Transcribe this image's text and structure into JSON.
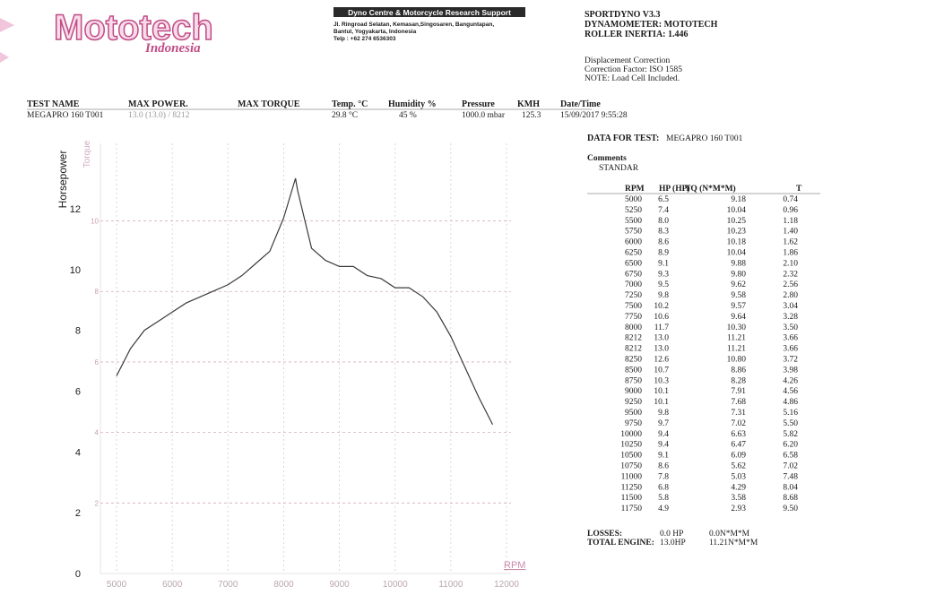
{
  "header": {
    "logo": "Mototech",
    "logo_sub": "Indonesia",
    "company": "Dyno Centre & Motorcycle Research Support",
    "address": [
      "Jl. Ringroad Selatan, Kemasan,Singosaren, Banguntapan,",
      "Bantul, Yogyakarta, Indonesia",
      "Telp : +62 274 6536303"
    ]
  },
  "software": {
    "lines": [
      "SPORTDYNO V3.3",
      "DYNAMOMETER: MOTOTECH",
      "ROLLER INERTIA: 1.446"
    ],
    "notes": [
      "Displacement Correction",
      "Correction Factor: ISO 1585",
      "NOTE: Load Cell Included."
    ]
  },
  "test_info": {
    "headers": [
      "TEST NAME",
      "MAX POWER.",
      "MAX TORQUE",
      "Temp. °C",
      "Humidity %",
      "Pressure",
      "KMH",
      "Date/Time"
    ],
    "values": {
      "test_name": "MEGAPRO 160 T001",
      "max_power": "13.0 (13.0) / 8212",
      "temp": "29.8 °C",
      "humidity": "45 %",
      "pressure": "1000.0 mbar",
      "kmh": "125.3",
      "datetime": "15/09/2017 9:55:28"
    }
  },
  "data_for_test": {
    "label": "DATA FOR TEST:",
    "value": "MEGAPRO 160 T001"
  },
  "comments": {
    "label": "Comments",
    "text": "STANDAR"
  },
  "data_table": {
    "columns": [
      "RPM",
      "HP (HP)",
      "TQ (N*M*M)",
      "T"
    ],
    "rows": [
      [
        "5000",
        "6.5",
        "9.18",
        "0.74"
      ],
      [
        "5250",
        "7.4",
        "10.04",
        "0.96"
      ],
      [
        "5500",
        "8.0",
        "10.25",
        "1.18"
      ],
      [
        "5750",
        "8.3",
        "10.23",
        "1.40"
      ],
      [
        "6000",
        "8.6",
        "10.18",
        "1.62"
      ],
      [
        "6250",
        "8.9",
        "10.04",
        "1.86"
      ],
      [
        "6500",
        "9.1",
        "9.88",
        "2.10"
      ],
      [
        "6750",
        "9.3",
        "9.80",
        "2.32"
      ],
      [
        "7000",
        "9.5",
        "9.62",
        "2.56"
      ],
      [
        "7250",
        "9.8",
        "9.58",
        "2.80"
      ],
      [
        "7500",
        "10.2",
        "9.57",
        "3.04"
      ],
      [
        "7750",
        "10.6",
        "9.64",
        "3.28"
      ],
      [
        "8000",
        "11.7",
        "10.30",
        "3.50"
      ],
      [
        "8212",
        "13.0",
        "11.21",
        "3.66"
      ],
      [
        "8212",
        "13.0",
        "11.21",
        "3.66"
      ],
      [
        "8250",
        "12.6",
        "10.80",
        "3.72"
      ],
      [
        "8500",
        "10.7",
        "8.86",
        "3.98"
      ],
      [
        "8750",
        "10.3",
        "8.28",
        "4.26"
      ],
      [
        "9000",
        "10.1",
        "7.91",
        "4.56"
      ],
      [
        "9250",
        "10.1",
        "7.68",
        "4.86"
      ],
      [
        "9500",
        "9.8",
        "7.31",
        "5.16"
      ],
      [
        "9750",
        "9.7",
        "7.02",
        "5.50"
      ],
      [
        "10000",
        "9.4",
        "6.63",
        "5.82"
      ],
      [
        "10250",
        "9.4",
        "6.47",
        "6.20"
      ],
      [
        "10500",
        "9.1",
        "6.09",
        "6.58"
      ],
      [
        "10750",
        "8.6",
        "5.62",
        "7.02"
      ],
      [
        "11000",
        "7.8",
        "5.03",
        "7.48"
      ],
      [
        "11250",
        "6.8",
        "4.29",
        "8.04"
      ],
      [
        "11500",
        "5.8",
        "3.58",
        "8.68"
      ],
      [
        "11750",
        "4.9",
        "2.93",
        "9.50"
      ]
    ]
  },
  "totals": {
    "rows": [
      [
        "LOSSES:",
        "0.0 HP",
        "0.0N*M*M"
      ],
      [
        "TOTAL ENGINE:",
        "13.0HP",
        "11.21N*M*M"
      ]
    ]
  },
  "chart_data": {
    "type": "line",
    "x_label": "RPM",
    "y_label": "Horsepower",
    "y2_label": "Torque",
    "x": [
      5000,
      5250,
      5500,
      5750,
      6000,
      6250,
      6500,
      6750,
      7000,
      7250,
      7500,
      7750,
      8000,
      8212,
      8212,
      8250,
      8500,
      8750,
      9000,
      9250,
      9500,
      9750,
      10000,
      10250,
      10500,
      10750,
      11000,
      11250,
      11500,
      11750
    ],
    "series": [
      {
        "color": "#3a3a3a",
        "values": [
          6.5,
          7.4,
          8.0,
          8.3,
          8.6,
          8.9,
          9.1,
          9.3,
          9.5,
          9.8,
          10.2,
          10.6,
          11.7,
          13.0,
          13.0,
          12.6,
          10.7,
          10.3,
          10.1,
          10.1,
          9.8,
          9.7,
          9.4,
          9.4,
          9.1,
          8.6,
          7.8,
          6.8,
          5.8,
          4.9
        ]
      }
    ],
    "xlim": [
      4710,
      12080
    ],
    "xticks": [
      5000,
      6000,
      7000,
      8000,
      9000,
      10000,
      11000,
      12000
    ],
    "ylim": [
      0,
      14.15
    ],
    "yticks": [
      0,
      2,
      4,
      6,
      8,
      10,
      12
    ],
    "y2lim": [
      0,
      12.2
    ],
    "y2ticks": [
      2,
      4,
      6,
      8,
      10
    ],
    "grid": true
  }
}
